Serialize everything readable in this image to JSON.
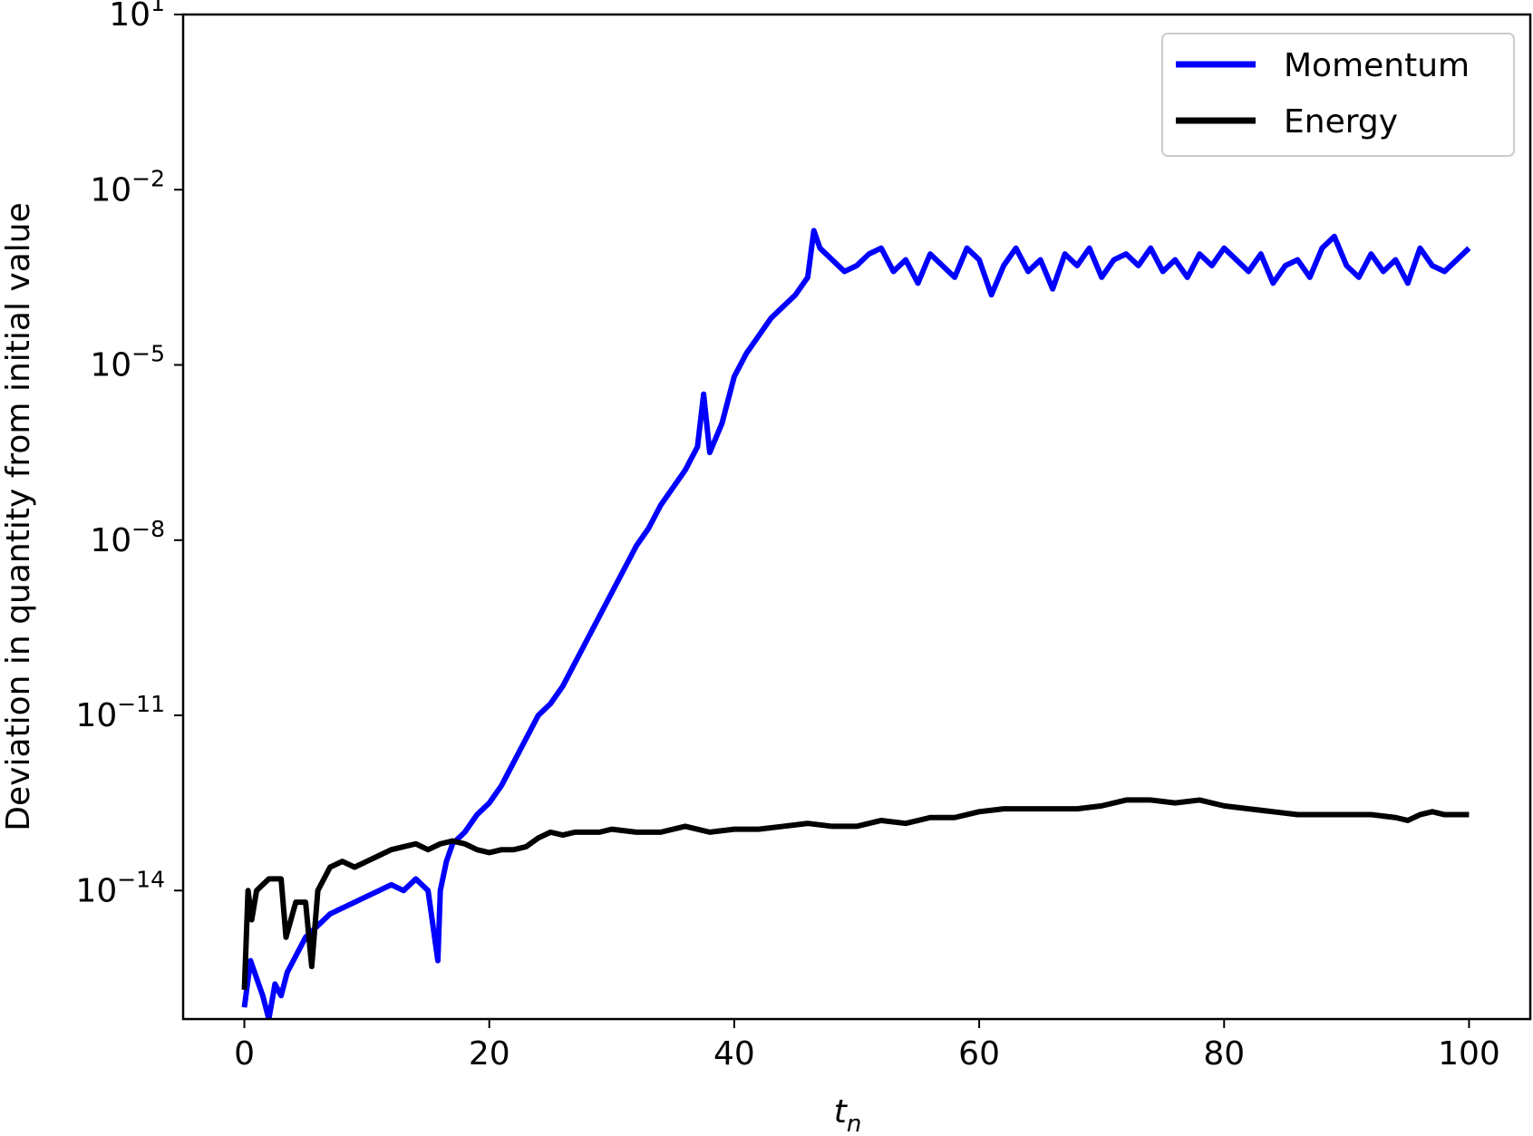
{
  "chart_data": {
    "type": "line",
    "xlabel": "t",
    "xlabel_sub": "n",
    "ylabel": "Deviation in quantity from initial value",
    "y_scale": "log",
    "xlim": [
      -5,
      105
    ],
    "ylim_log10": [
      -16.2,
      1
    ],
    "x_ticks": [
      {
        "value": 0,
        "label": "0"
      },
      {
        "value": 20,
        "label": "20"
      },
      {
        "value": 40,
        "label": "40"
      },
      {
        "value": 60,
        "label": "60"
      },
      {
        "value": 80,
        "label": "80"
      },
      {
        "value": 100,
        "label": "100"
      }
    ],
    "y_ticks": [
      {
        "exp": 1,
        "base": "10",
        "exp_label": "1"
      },
      {
        "exp": -2,
        "base": "10",
        "exp_label": "−2"
      },
      {
        "exp": -5,
        "base": "10",
        "exp_label": "−5"
      },
      {
        "exp": -8,
        "base": "10",
        "exp_label": "−8"
      },
      {
        "exp": -11,
        "base": "10",
        "exp_label": "−11"
      },
      {
        "exp": -14,
        "base": "10",
        "exp_label": "−14"
      }
    ],
    "legend_position": "top-right",
    "grid": false,
    "series": [
      {
        "name": "Momentum",
        "color": "#0000ff",
        "x": [
          0,
          0.5,
          1,
          1.5,
          2,
          2.5,
          3,
          3.5,
          4,
          5,
          6,
          7,
          8,
          9,
          10,
          11,
          12,
          13,
          14,
          15,
          15.8,
          16,
          16.5,
          17,
          18,
          19,
          20,
          21,
          22,
          23,
          24,
          25,
          26,
          27,
          28,
          29,
          30,
          31,
          32,
          33,
          34,
          35,
          36,
          37,
          37.5,
          38,
          39,
          40,
          41,
          42,
          43,
          44,
          45,
          46,
          46.5,
          47,
          48,
          49,
          50,
          51,
          52,
          53,
          54,
          55,
          56,
          57,
          58,
          59,
          60,
          61,
          62,
          63,
          64,
          65,
          66,
          67,
          68,
          69,
          70,
          71,
          72,
          73,
          74,
          75,
          76,
          77,
          78,
          79,
          80,
          81,
          82,
          83,
          84,
          85,
          86,
          87,
          88,
          89,
          90,
          91,
          92,
          93,
          94,
          95,
          96,
          97,
          98,
          99,
          100
        ],
        "values_log10": [
          -16.0,
          -15.2,
          -15.5,
          -15.8,
          -16.2,
          -15.6,
          -15.8,
          -15.4,
          -15.2,
          -14.8,
          -14.6,
          -14.4,
          -14.3,
          -14.2,
          -14.1,
          -14.0,
          -13.9,
          -14.0,
          -13.8,
          -14.0,
          -15.2,
          -14.0,
          -13.5,
          -13.2,
          -13.0,
          -12.7,
          -12.5,
          -12.2,
          -11.8,
          -11.4,
          -11.0,
          -10.8,
          -10.5,
          -10.1,
          -9.7,
          -9.3,
          -8.9,
          -8.5,
          -8.1,
          -7.8,
          -7.4,
          -7.1,
          -6.8,
          -6.4,
          -5.5,
          -6.5,
          -6.0,
          -5.2,
          -4.8,
          -4.5,
          -4.2,
          -4.0,
          -3.8,
          -3.5,
          -2.7,
          -3.0,
          -3.2,
          -3.4,
          -3.3,
          -3.1,
          -3.0,
          -3.4,
          -3.2,
          -3.6,
          -3.1,
          -3.3,
          -3.5,
          -3.0,
          -3.2,
          -3.8,
          -3.3,
          -3.0,
          -3.4,
          -3.2,
          -3.7,
          -3.1,
          -3.3,
          -3.0,
          -3.5,
          -3.2,
          -3.1,
          -3.3,
          -3.0,
          -3.4,
          -3.2,
          -3.5,
          -3.1,
          -3.3,
          -3.0,
          -3.2,
          -3.4,
          -3.1,
          -3.6,
          -3.3,
          -3.2,
          -3.5,
          -3.0,
          -2.8,
          -3.3,
          -3.5,
          -3.1,
          -3.4,
          -3.2,
          -3.6,
          -3.0,
          -3.3,
          -3.4,
          -3.2,
          -3.0
        ]
      },
      {
        "name": "Energy",
        "color": "#000000",
        "x": [
          0,
          0.3,
          0.6,
          1,
          1.5,
          2,
          2.5,
          3,
          3.4,
          3.8,
          4.2,
          5,
          5.5,
          6,
          7,
          8,
          9,
          10,
          11,
          12,
          13,
          14,
          15,
          16,
          17,
          18,
          19,
          20,
          21,
          22,
          23,
          24,
          25,
          26,
          27,
          28,
          29,
          30,
          32,
          34,
          36,
          38,
          40,
          42,
          44,
          46,
          48,
          50,
          52,
          54,
          56,
          58,
          60,
          62,
          64,
          66,
          68,
          70,
          72,
          74,
          76,
          78,
          80,
          82,
          84,
          86,
          88,
          90,
          92,
          94,
          95,
          96,
          97,
          98,
          100
        ],
        "values_log10": [
          -15.7,
          -14.0,
          -14.5,
          -14.0,
          -13.9,
          -13.8,
          -13.8,
          -13.8,
          -14.8,
          -14.5,
          -14.2,
          -14.2,
          -15.3,
          -14.0,
          -13.6,
          -13.5,
          -13.6,
          -13.5,
          -13.4,
          -13.3,
          -13.25,
          -13.2,
          -13.3,
          -13.2,
          -13.15,
          -13.2,
          -13.3,
          -13.35,
          -13.3,
          -13.3,
          -13.25,
          -13.1,
          -13.0,
          -13.05,
          -13.0,
          -13.0,
          -13.0,
          -12.95,
          -13.0,
          -13.0,
          -12.9,
          -13.0,
          -12.95,
          -12.95,
          -12.9,
          -12.85,
          -12.9,
          -12.9,
          -12.8,
          -12.85,
          -12.75,
          -12.75,
          -12.65,
          -12.6,
          -12.6,
          -12.6,
          -12.6,
          -12.55,
          -12.45,
          -12.45,
          -12.5,
          -12.45,
          -12.55,
          -12.6,
          -12.65,
          -12.7,
          -12.7,
          -12.7,
          -12.7,
          -12.75,
          -12.8,
          -12.7,
          -12.65,
          -12.7,
          -12.7
        ]
      }
    ]
  }
}
